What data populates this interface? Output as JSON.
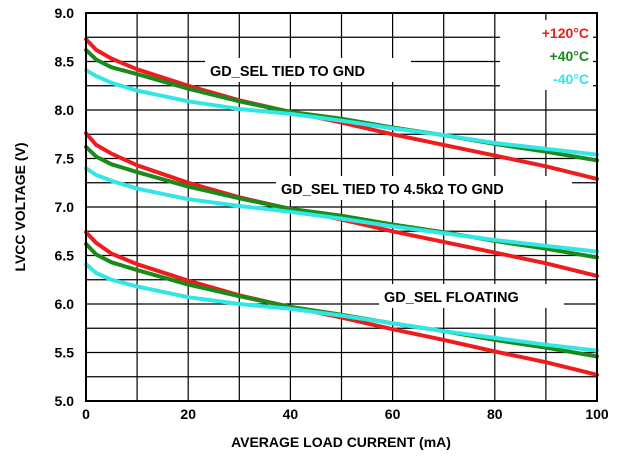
{
  "chart_data": {
    "type": "line",
    "title": "",
    "xlabel": "AVERAGE LOAD CURRENT (mA)",
    "ylabel": "LVCC VOLTAGE (V)",
    "xlim": [
      0,
      100
    ],
    "ylim": [
      5.0,
      9.0
    ],
    "x_ticks": [
      "0",
      "20",
      "40",
      "60",
      "80",
      "100"
    ],
    "y_ticks": [
      "5.0",
      "5.5",
      "6.0",
      "6.5",
      "7.0",
      "7.5",
      "8.0",
      "8.5",
      "9.0"
    ],
    "grid": true,
    "legend_position": "top-right",
    "legend": [
      {
        "label": "+120°C",
        "color": "#ee1c1c"
      },
      {
        "label": "+40°C",
        "color": "#1a8a1a"
      },
      {
        "label": "-40°C",
        "color": "#33e6e6"
      }
    ],
    "annotations": [
      {
        "text": "GD_SEL TIED TO GND"
      },
      {
        "text": "GD_SEL TIED TO 4.5kΩ TO GND"
      },
      {
        "text": "GD_SEL FLOATING"
      }
    ],
    "series": [
      {
        "group": "GD_SEL TIED TO GND",
        "temp": "+120°C",
        "color": "#ee1c1c",
        "x": [
          0,
          2,
          5,
          10,
          20,
          30,
          40,
          50,
          60,
          70,
          80,
          90,
          100
        ],
        "y": [
          8.73,
          8.62,
          8.53,
          8.42,
          8.25,
          8.1,
          7.98,
          7.87,
          7.75,
          7.64,
          7.53,
          7.42,
          7.29
        ]
      },
      {
        "group": "GD_SEL TIED TO GND",
        "temp": "+40°C",
        "color": "#1a8a1a",
        "x": [
          0,
          2,
          5,
          10,
          20,
          30,
          40,
          50,
          60,
          70,
          80,
          90,
          100
        ],
        "y": [
          8.62,
          8.52,
          8.44,
          8.37,
          8.22,
          8.09,
          7.98,
          7.91,
          7.82,
          7.74,
          7.65,
          7.57,
          7.48
        ]
      },
      {
        "group": "GD_SEL TIED TO GND",
        "temp": "-40°C",
        "color": "#33e6e6",
        "x": [
          0,
          2,
          5,
          10,
          20,
          30,
          40,
          50,
          60,
          70,
          80,
          90,
          100
        ],
        "y": [
          8.41,
          8.35,
          8.28,
          8.2,
          8.09,
          8.01,
          7.96,
          7.89,
          7.81,
          7.74,
          7.66,
          7.6,
          7.54
        ]
      },
      {
        "group": "GD_SEL TIED TO 4.5kΩ TO GND",
        "temp": "+120°C",
        "color": "#ee1c1c",
        "x": [
          0,
          2,
          5,
          10,
          20,
          30,
          40,
          50,
          60,
          70,
          80,
          90,
          100
        ],
        "y": [
          7.76,
          7.64,
          7.55,
          7.43,
          7.25,
          7.1,
          6.98,
          6.87,
          6.75,
          6.64,
          6.53,
          6.42,
          6.29
        ]
      },
      {
        "group": "GD_SEL TIED TO 4.5kΩ TO GND",
        "temp": "+40°C",
        "color": "#1a8a1a",
        "x": [
          0,
          2,
          5,
          10,
          20,
          30,
          40,
          50,
          60,
          70,
          80,
          90,
          100
        ],
        "y": [
          7.62,
          7.52,
          7.44,
          7.36,
          7.21,
          7.09,
          6.98,
          6.91,
          6.82,
          6.74,
          6.65,
          6.57,
          6.48
        ]
      },
      {
        "group": "GD_SEL TIED TO 4.5kΩ TO GND",
        "temp": "-40°C",
        "color": "#33e6e6",
        "x": [
          0,
          2,
          5,
          10,
          20,
          30,
          40,
          50,
          60,
          70,
          80,
          90,
          100
        ],
        "y": [
          7.4,
          7.33,
          7.27,
          7.19,
          7.08,
          7.01,
          6.95,
          6.88,
          6.8,
          6.73,
          6.66,
          6.6,
          6.54
        ]
      },
      {
        "group": "GD_SEL FLOATING",
        "temp": "+120°C",
        "color": "#ee1c1c",
        "x": [
          0,
          2,
          5,
          10,
          20,
          30,
          40,
          50,
          60,
          70,
          80,
          90,
          100
        ],
        "y": [
          6.74,
          6.63,
          6.52,
          6.41,
          6.24,
          6.09,
          5.97,
          5.86,
          5.74,
          5.63,
          5.51,
          5.4,
          5.27
        ]
      },
      {
        "group": "GD_SEL FLOATING",
        "temp": "+40°C",
        "color": "#1a8a1a",
        "x": [
          0,
          2,
          5,
          10,
          20,
          30,
          40,
          50,
          60,
          70,
          80,
          90,
          100
        ],
        "y": [
          6.62,
          6.51,
          6.43,
          6.35,
          6.2,
          6.08,
          5.97,
          5.89,
          5.8,
          5.72,
          5.63,
          5.55,
          5.46
        ]
      },
      {
        "group": "GD_SEL FLOATING",
        "temp": "-40°C",
        "color": "#33e6e6",
        "x": [
          0,
          2,
          5,
          10,
          20,
          30,
          40,
          50,
          60,
          70,
          80,
          90,
          100
        ],
        "y": [
          6.41,
          6.32,
          6.25,
          6.18,
          6.07,
          6.0,
          5.95,
          5.88,
          5.8,
          5.72,
          5.65,
          5.58,
          5.52
        ]
      }
    ]
  }
}
